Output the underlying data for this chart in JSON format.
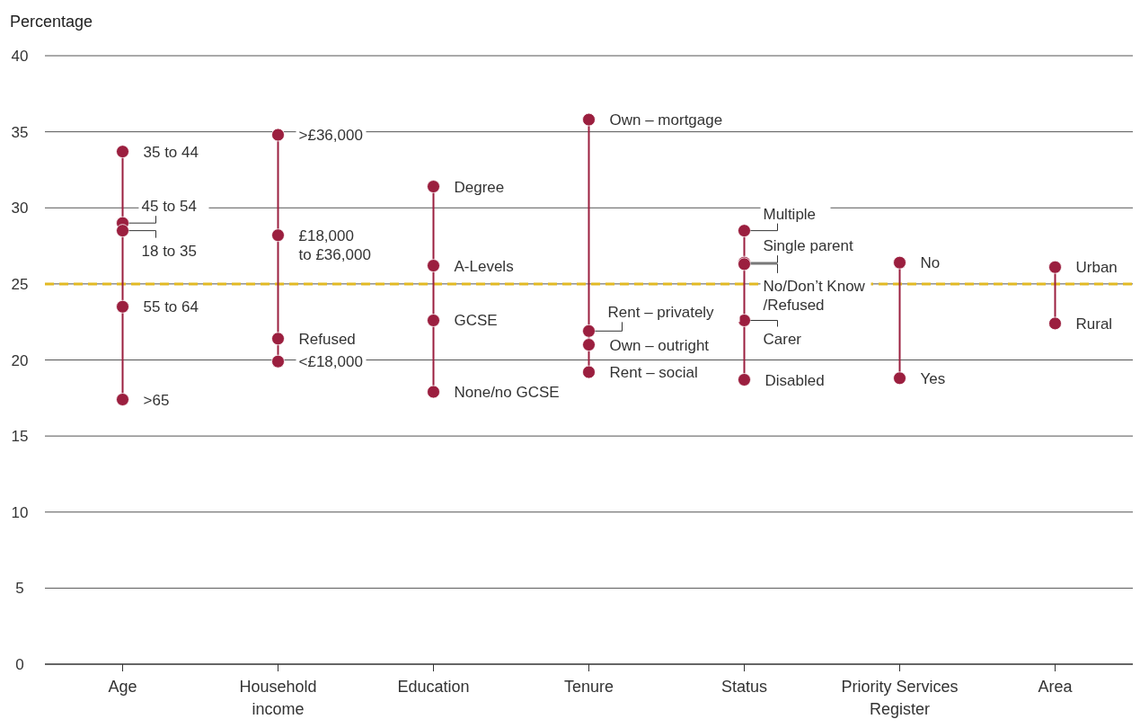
{
  "chart_data": {
    "type": "scatter",
    "ylabel": "Percentage",
    "categories": [
      "Age",
      "Household income",
      "Education",
      "Tenure",
      "Status",
      "Priority Services Register",
      "Area"
    ],
    "series": [
      {
        "color": "#9b1f3f",
        "marker": "circle",
        "x": [
          "Age",
          "Age",
          "Age",
          "Age",
          "Age",
          "Household income",
          "Household income",
          "Household income",
          "Household income",
          "Education",
          "Education",
          "Education",
          "Education",
          "Tenure",
          "Tenure",
          "Tenure",
          "Tenure",
          "Status",
          "Status",
          "Status",
          "Status",
          "Status",
          "Priority Services Register",
          "Priority Services Register",
          "Area",
          "Area"
        ],
        "values": [
          33.7,
          29.0,
          28.5,
          23.5,
          17.4,
          34.8,
          28.2,
          21.4,
          19.9,
          31.4,
          26.2,
          22.6,
          17.9,
          35.8,
          21.9,
          21.0,
          19.2,
          28.5,
          26.4,
          26.3,
          22.6,
          18.7,
          26.4,
          18.8,
          26.1,
          22.4
        ],
        "value_labels": [
          "35 to 44",
          "45 to 54",
          "18 to 35",
          "55 to 64",
          ">65",
          ">£36,000",
          "£18,000 to £36,000",
          "Refused",
          "<£18,000",
          "Degree",
          "A-Levels",
          "GCSE",
          "None/no GCSE",
          "Own – mortgage",
          "Rent – privately",
          "Own – outright",
          "Rent – social",
          "Multiple",
          "Single parent",
          "No/Don’t Know /Refused",
          "Carer",
          "Disabled",
          "No",
          "Yes",
          "Urban",
          "Rural"
        ]
      }
    ],
    "ylim": [
      0,
      40
    ],
    "yticks": [
      0,
      5,
      10,
      15,
      20,
      25,
      30,
      35,
      40
    ],
    "grid": "y",
    "ref_lines": [
      {
        "axis": "y",
        "value": 25,
        "color": "#e2b923",
        "line_style": "dashed"
      }
    ]
  }
}
